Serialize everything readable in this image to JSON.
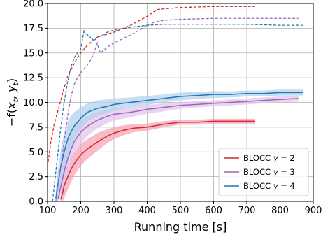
{
  "chart_data": {
    "type": "line",
    "title": "",
    "xlabel": "Running time [s]",
    "ylabel": "−f(x_t, y_t)",
    "ylabel_parts": {
      "minus_f": "−f(",
      "x": "x",
      "x_sub": "t",
      "comma": ", ",
      "y": "y",
      "y_sub": "t",
      "close": ")"
    },
    "xlim": [
      100,
      900
    ],
    "ylim": [
      0,
      20
    ],
    "xticks": [
      100,
      200,
      300,
      400,
      500,
      600,
      700,
      800,
      900
    ],
    "yticks": [
      0.0,
      2.5,
      5.0,
      7.5,
      10.0,
      12.5,
      15.0,
      17.5,
      20.0
    ],
    "xtick_labels": [
      "100",
      "200",
      "300",
      "400",
      "500",
      "600",
      "700",
      "800",
      "900"
    ],
    "ytick_labels": [
      "0.0",
      "2.5",
      "5.0",
      "7.5",
      "10.0",
      "12.5",
      "15.0",
      "17.5",
      "20.0"
    ],
    "grid": true,
    "legend_position": "lower-right",
    "series": [
      {
        "name": "BLOCC γ = 2",
        "legend_prefix": "BLOCC ",
        "legend_symbol": "γ",
        "legend_suffix": " = 2",
        "color": "#d62728",
        "fill_color": "#f4a6b4",
        "style": "solid",
        "x": [
          140,
          145,
          150,
          160,
          170,
          180,
          200,
          220,
          250,
          280,
          300,
          330,
          360,
          400,
          450,
          500,
          550,
          600,
          650,
          700,
          725
        ],
        "y": [
          0.2,
          0.8,
          1.6,
          2.4,
          3.2,
          3.8,
          4.7,
          5.3,
          6.0,
          6.6,
          6.9,
          7.2,
          7.4,
          7.5,
          7.8,
          8.0,
          8.0,
          8.1,
          8.1,
          8.1,
          8.1
        ],
        "band": [
          0.6,
          1.0,
          1.3,
          1.3,
          1.3,
          1.2,
          1.1,
          1.0,
          0.9,
          0.7,
          0.6,
          0.5,
          0.4,
          0.35,
          0.3,
          0.25,
          0.25,
          0.25,
          0.25,
          0.25,
          0.25
        ]
      },
      {
        "name": "BLOCC γ = 3",
        "legend_prefix": "BLOCC ",
        "legend_symbol": "γ",
        "legend_suffix": " = 3",
        "color": "#9467bd",
        "fill_color": "#e3c6ea",
        "style": "solid",
        "x": [
          132,
          140,
          150,
          160,
          170,
          180,
          200,
          220,
          250,
          280,
          300,
          350,
          400,
          450,
          500,
          550,
          600,
          650,
          700,
          750,
          800,
          855
        ],
        "y": [
          0.3,
          1.5,
          3.0,
          4.2,
          5.2,
          6.0,
          7.0,
          7.6,
          8.2,
          8.6,
          8.8,
          9.0,
          9.3,
          9.5,
          9.7,
          9.8,
          9.9,
          10.0,
          10.1,
          10.2,
          10.3,
          10.4
        ],
        "band": [
          0.8,
          1.3,
          1.6,
          1.6,
          1.5,
          1.4,
          1.2,
          1.0,
          0.8,
          0.7,
          0.6,
          0.5,
          0.45,
          0.4,
          0.35,
          0.3,
          0.3,
          0.3,
          0.3,
          0.3,
          0.3,
          0.3
        ]
      },
      {
        "name": "BLOCC γ = 4",
        "legend_prefix": "BLOCC ",
        "legend_symbol": "γ",
        "legend_suffix": " = 4",
        "color": "#1f77b4",
        "fill_color": "#b4d2ec",
        "style": "solid",
        "x": [
          125,
          130,
          140,
          150,
          160,
          170,
          180,
          200,
          220,
          250,
          280,
          300,
          350,
          400,
          450,
          500,
          550,
          600,
          650,
          700,
          750,
          800,
          870
        ],
        "y": [
          0.3,
          1.5,
          3.5,
          5.0,
          6.2,
          7.0,
          7.6,
          8.4,
          9.0,
          9.4,
          9.6,
          9.8,
          10.0,
          10.2,
          10.4,
          10.6,
          10.7,
          10.8,
          10.8,
          10.9,
          10.9,
          11.0,
          11.0
        ],
        "band": [
          0.8,
          1.4,
          1.8,
          1.9,
          1.8,
          1.6,
          1.4,
          1.1,
          0.9,
          0.8,
          0.7,
          0.6,
          0.5,
          0.45,
          0.4,
          0.4,
          0.35,
          0.35,
          0.3,
          0.3,
          0.3,
          0.3,
          0.3
        ]
      },
      {
        "name": "",
        "color": "#d62728",
        "style": "dashed",
        "x": [
          100,
          110,
          120,
          130,
          140,
          150,
          160,
          170,
          180,
          190,
          200,
          220,
          250,
          300,
          350,
          400,
          430,
          500,
          600,
          700,
          725
        ],
        "y": [
          3.5,
          6.0,
          7.8,
          9.0,
          10.2,
          11.5,
          12.6,
          13.3,
          13.9,
          14.5,
          15.0,
          15.8,
          16.6,
          17.1,
          17.8,
          18.7,
          19.4,
          19.6,
          19.7,
          19.7,
          19.7
        ]
      },
      {
        "name": "",
        "color": "#9467bd",
        "style": "dashed",
        "x": [
          125,
          130,
          140,
          150,
          160,
          170,
          180,
          190,
          200,
          210,
          220,
          230,
          240,
          250,
          255,
          260,
          280,
          300,
          330,
          360,
          400,
          420,
          450,
          500,
          600,
          700,
          800,
          855
        ],
        "y": [
          0.0,
          1.2,
          3.5,
          6.0,
          8.5,
          10.5,
          11.8,
          12.5,
          13.0,
          13.4,
          13.8,
          14.3,
          15.0,
          16.0,
          15.3,
          15.0,
          15.6,
          16.0,
          16.5,
          17.0,
          17.8,
          18.1,
          18.3,
          18.4,
          18.5,
          18.5,
          18.5,
          18.5
        ]
      },
      {
        "name": "",
        "color": "#1f77b4",
        "style": "dashed",
        "x": [
          115,
          120,
          130,
          140,
          150,
          160,
          170,
          180,
          190,
          200,
          210,
          215,
          220,
          225,
          230,
          240,
          250,
          260,
          280,
          300,
          350,
          400,
          450,
          500,
          600,
          700,
          800,
          870
        ],
        "y": [
          0.0,
          1.5,
          4.5,
          7.5,
          10.0,
          12.0,
          13.5,
          14.5,
          15.0,
          15.4,
          17.3,
          16.8,
          16.9,
          16.5,
          16.6,
          16.2,
          16.6,
          16.7,
          17.1,
          17.3,
          17.6,
          17.8,
          17.9,
          17.9,
          17.9,
          17.9,
          17.8,
          17.8
        ]
      }
    ]
  }
}
